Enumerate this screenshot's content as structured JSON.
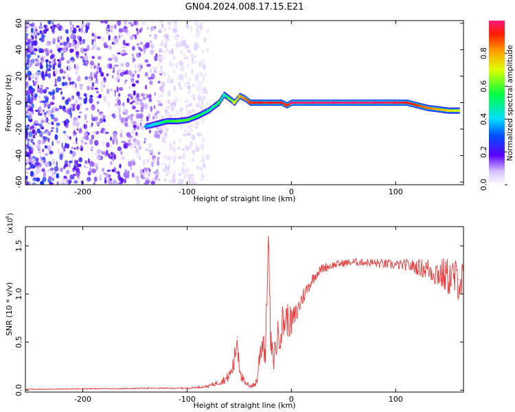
{
  "title": "GN04.2024.008.17.15.E21",
  "chart_data": [
    {
      "type": "heatmap",
      "xlabel": "Height of straight line (km)",
      "ylabel": "Frequency (Hz)",
      "xlim": [
        -255,
        165
      ],
      "ylim": [
        -62,
        62
      ],
      "xticks": [
        -200,
        -100,
        0,
        100
      ],
      "yticks": [
        60,
        40,
        20,
        0,
        -20,
        -40,
        -60
      ],
      "xtick_labels": [
        "-200",
        "-100",
        "0",
        "100"
      ],
      "ytick_labels": [
        "60",
        "40",
        "20",
        "0",
        "-20",
        "-40",
        "-60"
      ],
      "colorbar": {
        "label": "Normalized spectral amplitude",
        "range": [
          0,
          1
        ],
        "ticks": [
          0.0,
          0.2,
          0.4,
          0.6,
          0.8
        ],
        "tick_labels": [
          "0.0",
          "0.2",
          "0.4",
          "0.6",
          "0.8"
        ]
      },
      "noise_region_x": [
        -255,
        -80
      ],
      "ridge": {
        "x": [
          -140,
          -130,
          -120,
          -110,
          -100,
          -90,
          -80,
          -75,
          -70,
          -65,
          -60,
          -55,
          -50,
          -45,
          -40,
          -35,
          -30,
          -20,
          -10,
          -5,
          0,
          20,
          40,
          60,
          80,
          100,
          110,
          120,
          130,
          140,
          150,
          160
        ],
        "y": [
          -18,
          -16,
          -14,
          -14,
          -13,
          -10,
          -6,
          -3,
          0,
          6,
          3,
          0,
          5,
          3,
          0,
          0,
          0,
          0,
          0,
          -2,
          0,
          0,
          0,
          0,
          0,
          0,
          0,
          -2,
          -4,
          -5,
          -6,
          -6
        ],
        "amplitude": [
          0.35,
          0.45,
          0.55,
          0.6,
          0.6,
          0.55,
          0.5,
          0.5,
          0.55,
          0.45,
          0.6,
          0.7,
          0.8,
          0.85,
          0.9,
          0.95,
          0.95,
          0.95,
          0.95,
          0.9,
          1.0,
          1.0,
          1.0,
          1.0,
          1.0,
          0.98,
          0.95,
          0.9,
          0.85,
          0.8,
          0.75,
          0.7
        ]
      }
    },
    {
      "type": "line",
      "xlabel": "Height of straight line (km)",
      "ylabel": "SNR (10 * v/v)",
      "y_exponent_label": "(x10",
      "y_exponent": "4",
      "y_exponent_close": ")",
      "xlim": [
        -255,
        165
      ],
      "ylim": [
        -0.02,
        1.7
      ],
      "xticks": [
        -200,
        -100,
        0,
        100
      ],
      "yticks": [
        0.0,
        0.5,
        1.0,
        1.5
      ],
      "xtick_labels": [
        "-200",
        "-100",
        "0",
        "100"
      ],
      "ytick_labels": [
        "0.0",
        "0.5",
        "1.0",
        "1.5"
      ],
      "series": [
        {
          "color": "#ee3333",
          "x": [
            -255,
            -230,
            -200,
            -170,
            -140,
            -120,
            -100,
            -90,
            -80,
            -70,
            -62,
            -58,
            -55,
            -52,
            -50,
            -47,
            -44,
            -40,
            -36,
            -33,
            -30,
            -27,
            -25,
            -22,
            -20,
            -18,
            -15,
            -12,
            -8,
            -5,
            0,
            5,
            10,
            15,
            20,
            25,
            30,
            40,
            50,
            60,
            70,
            80,
            90,
            100,
            110,
            120,
            130,
            140,
            150,
            160,
            165
          ],
          "y": [
            0.01,
            0.01,
            0.015,
            0.015,
            0.02,
            0.02,
            0.02,
            0.03,
            0.04,
            0.08,
            0.12,
            0.18,
            0.28,
            0.55,
            0.3,
            0.12,
            0.06,
            0.05,
            0.05,
            0.1,
            0.4,
            0.55,
            0.35,
            1.6,
            0.55,
            0.3,
            0.45,
            0.6,
            0.7,
            0.75,
            0.7,
            0.8,
            0.95,
            1.05,
            1.15,
            1.22,
            1.27,
            1.3,
            1.32,
            1.33,
            1.33,
            1.32,
            1.31,
            1.3,
            1.3,
            1.28,
            1.26,
            1.22,
            1.18,
            1.15,
            1.12
          ],
          "noise_amplitude": [
            0.005,
            0.005,
            0.005,
            0.005,
            0.006,
            0.006,
            0.008,
            0.01,
            0.015,
            0.03,
            0.05,
            0.08,
            0.12,
            0.2,
            0.15,
            0.06,
            0.03,
            0.03,
            0.03,
            0.06,
            0.15,
            0.2,
            0.15,
            0.1,
            0.2,
            0.15,
            0.15,
            0.2,
            0.22,
            0.2,
            0.15,
            0.12,
            0.1,
            0.08,
            0.06,
            0.05,
            0.05,
            0.04,
            0.04,
            0.04,
            0.04,
            0.05,
            0.05,
            0.05,
            0.06,
            0.08,
            0.12,
            0.16,
            0.2,
            0.22,
            0.22
          ]
        }
      ]
    }
  ]
}
